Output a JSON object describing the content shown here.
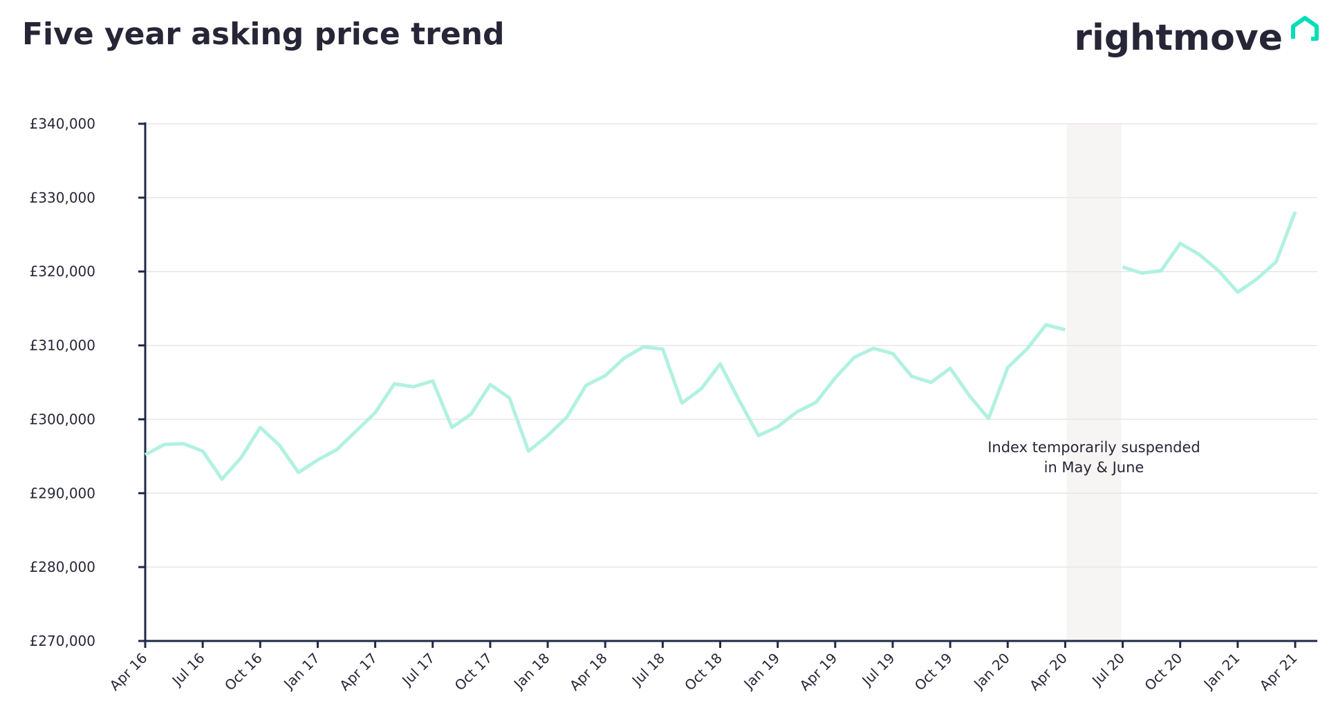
{
  "chart_data": {
    "type": "line",
    "title": "Five year asking price trend",
    "logo": "rightmove",
    "annotation": [
      "Index temporarily suspended",
      "in May & June"
    ],
    "categories": [
      "Apr 16",
      null,
      null,
      "Jul 16",
      null,
      null,
      "Oct 16",
      null,
      null,
      "Jan 17",
      null,
      null,
      "Apr 17",
      null,
      null,
      "Jul 17",
      null,
      null,
      "Oct 17",
      null,
      null,
      "Jan 18",
      null,
      null,
      "Apr 18",
      null,
      null,
      "Jul 18",
      null,
      null,
      "Oct 18",
      null,
      null,
      "Jan 19",
      null,
      null,
      "Apr 19",
      null,
      null,
      "Jul 19",
      null,
      null,
      "Oct 19",
      null,
      null,
      "Jan 20",
      null,
      null,
      "Apr 20",
      null,
      null,
      "Jul 20",
      null,
      null,
      "Oct 20",
      null,
      null,
      "Jan 21",
      null,
      null,
      "Apr 21"
    ],
    "series": [
      {
        "color": "#b1f1e1",
        "values": [
          295200,
          296600,
          296700,
          295700,
          291900,
          294800,
          298900,
          296500,
          292800,
          294500,
          295900,
          298400,
          300900,
          304800,
          304400,
          305200,
          298900,
          300700,
          304700,
          302900,
          295700,
          297800,
          300300,
          304600,
          305900,
          308300,
          309800,
          309500,
          302200,
          304100,
          307500,
          302500,
          297800,
          299000,
          301000,
          302300,
          305600,
          308400,
          309600,
          308900,
          305800,
          305000,
          306900,
          303200,
          300100,
          307000,
          309500,
          312800,
          312100,
          null,
          null,
          320600,
          319800,
          320100,
          323800,
          322300,
          320100,
          317200,
          319000,
          321300,
          328100
        ]
      }
    ],
    "ylim": [
      270000,
      340000
    ],
    "yticks": [
      {
        "value": 270000,
        "label": "£270,000"
      },
      {
        "value": 280000,
        "label": "£280,000"
      },
      {
        "value": 290000,
        "label": "£290,000"
      },
      {
        "value": 300000,
        "label": "£300,000"
      },
      {
        "value": 310000,
        "label": "£310,000"
      },
      {
        "value": 320000,
        "label": "£320,000"
      },
      {
        "value": 330000,
        "label": "£330,000"
      },
      {
        "value": 340000,
        "label": "£340,000"
      }
    ],
    "grid": true
  }
}
